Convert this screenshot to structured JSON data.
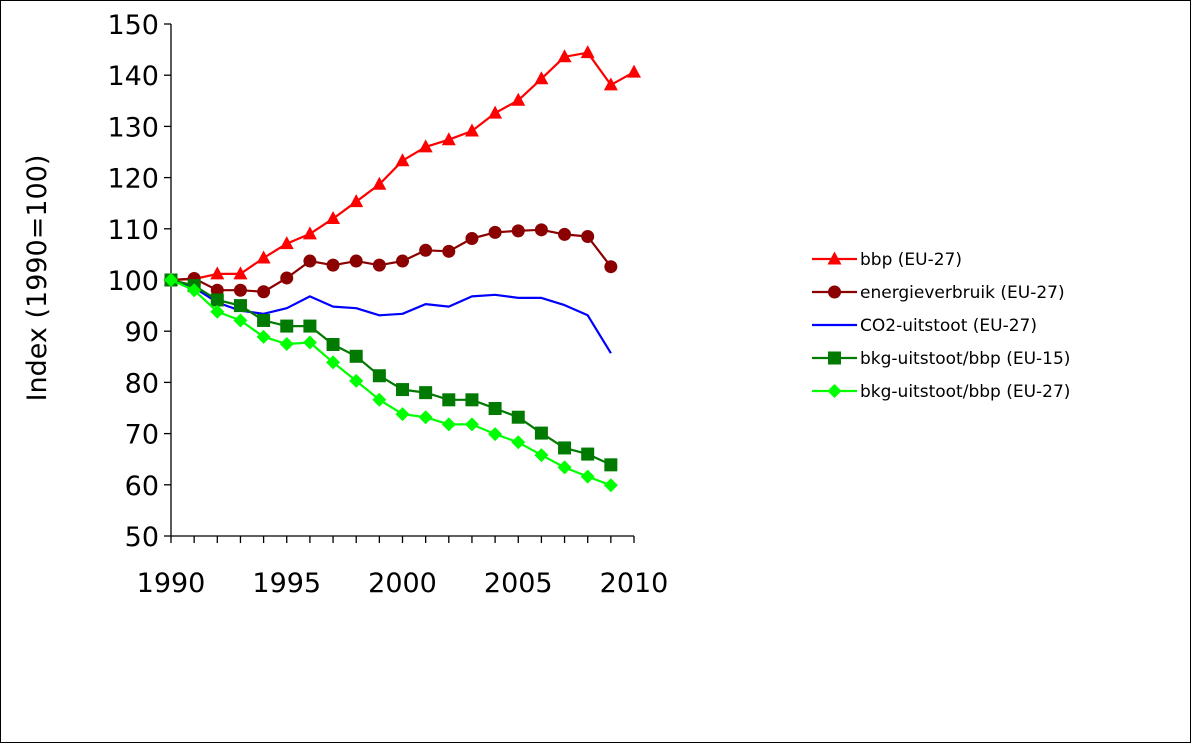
{
  "chart_data": {
    "type": "line",
    "title": "",
    "xlabel": "",
    "ylabel": "Index (1990=100)",
    "xlim": [
      1990,
      2010
    ],
    "ylim": [
      50,
      150
    ],
    "x_ticks": [
      1990,
      1995,
      2000,
      2005,
      2010
    ],
    "y_ticks": [
      50,
      60,
      70,
      80,
      90,
      100,
      110,
      120,
      130,
      140,
      150
    ],
    "grid": false,
    "legend_position": "right",
    "series": [
      {
        "name": "bbp (EU-27)",
        "color": "#ff0000",
        "marker": "triangle",
        "x": [
          1990,
          1991,
          1992,
          1993,
          1994,
          1995,
          1996,
          1997,
          1998,
          1999,
          2000,
          2001,
          2002,
          2003,
          2004,
          2005,
          2006,
          2007,
          2008,
          2009,
          2010
        ],
        "values": [
          100,
          100.2,
          101.2,
          101.2,
          104.3,
          107.1,
          109,
          112,
          115.3,
          118.7,
          123.3,
          126,
          127.4,
          129.1,
          132.6,
          135.1,
          139.3,
          143.6,
          144.4,
          138.1,
          140.6
        ]
      },
      {
        "name": "energieverbruik (EU-27)",
        "color": "#8b0000",
        "marker": "circle",
        "x": [
          1990,
          1991,
          1992,
          1993,
          1994,
          1995,
          1996,
          1997,
          1998,
          1999,
          2000,
          2001,
          2002,
          2003,
          2004,
          2005,
          2006,
          2007,
          2008,
          2009
        ],
        "values": [
          100,
          100.3,
          98,
          98,
          97.7,
          100.4,
          103.7,
          102.9,
          103.7,
          102.9,
          103.7,
          105.8,
          105.6,
          108.1,
          109.3,
          109.6,
          109.8,
          108.9,
          108.5,
          102.6
        ]
      },
      {
        "name": "CO2-uitstoot (EU-27)",
        "color": "#0000ff",
        "marker": "none",
        "x": [
          1990,
          1991,
          1992,
          1993,
          1994,
          1995,
          1996,
          1997,
          1998,
          1999,
          2000,
          2001,
          2002,
          2003,
          2004,
          2005,
          2006,
          2007,
          2008,
          2009
        ],
        "values": [
          100,
          98.5,
          95.6,
          94,
          93.4,
          94.5,
          96.8,
          94.8,
          94.5,
          93.1,
          93.4,
          95.3,
          94.8,
          96.8,
          97.1,
          96.5,
          96.5,
          95.1,
          93.1,
          85.7
        ]
      },
      {
        "name": "bkg-uitstoot/bbp (EU-15)",
        "color": "#007a00",
        "marker": "square",
        "x": [
          1990,
          1991,
          1992,
          1993,
          1994,
          1995,
          1996,
          1997,
          1998,
          1999,
          2000,
          2001,
          2002,
          2003,
          2004,
          2005,
          2006,
          2007,
          2008,
          2009
        ],
        "values": [
          100,
          98.9,
          96.1,
          95,
          92.1,
          91,
          91,
          87.4,
          85.1,
          81.3,
          78.6,
          78,
          76.6,
          76.6,
          74.9,
          73.2,
          70.1,
          67.2,
          66,
          63.9
        ]
      },
      {
        "name": "bkg-uitstoot/bbp (EU-27)",
        "color": "#00ff00",
        "marker": "diamond",
        "x": [
          1990,
          1991,
          1992,
          1993,
          1994,
          1995,
          1996,
          1997,
          1998,
          1999,
          2000,
          2001,
          2002,
          2003,
          2004,
          2005,
          2006,
          2007,
          2008,
          2009
        ],
        "values": [
          100,
          98,
          93.8,
          92.1,
          88.9,
          87.5,
          87.8,
          83.9,
          80.3,
          76.6,
          73.8,
          73.2,
          71.8,
          71.8,
          69.9,
          68.3,
          65.8,
          63.4,
          61.6,
          59.9
        ]
      }
    ]
  }
}
